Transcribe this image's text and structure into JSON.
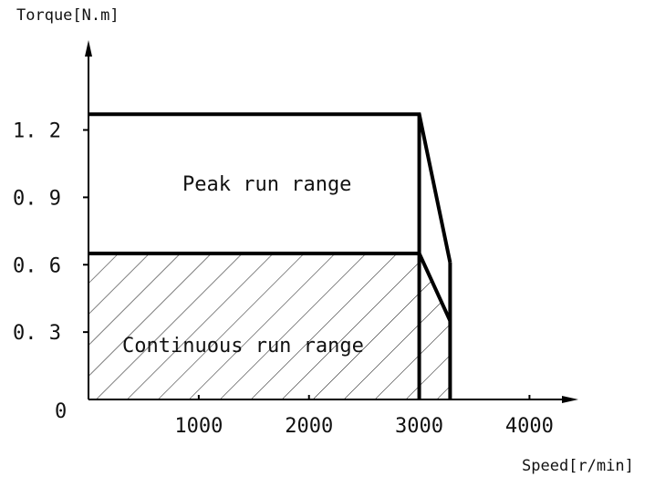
{
  "chart_data": {
    "type": "area",
    "ylabel": "Torque[N.m]",
    "xlabel": "Speed[r/min]",
    "x_ticks": [
      1000,
      2000,
      3000,
      4000
    ],
    "x_tick_labels": [
      "1000",
      "2000",
      "3000",
      "4000"
    ],
    "y_ticks": [
      0,
      0.3,
      0.6,
      0.9,
      1.2
    ],
    "y_tick_labels": [
      "0",
      "0. 3",
      "0. 6",
      "0. 9",
      "1. 2"
    ],
    "xlim": [
      0,
      4700
    ],
    "ylim": [
      0,
      1.6
    ],
    "regions": [
      {
        "name": "Peak run range",
        "hatched": false,
        "points": [
          [
            0,
            1.27
          ],
          [
            3000,
            1.27
          ],
          [
            3280,
            0.61
          ],
          [
            3280,
            0
          ]
        ]
      },
      {
        "name": "Continuous run range",
        "hatched": true,
        "points": [
          [
            0,
            0
          ],
          [
            0,
            0.65
          ],
          [
            3000,
            0.65
          ],
          [
            3280,
            0.35
          ],
          [
            3280,
            0
          ],
          [
            0,
            0
          ]
        ]
      }
    ],
    "grid": false,
    "colors": {
      "line": "#000000",
      "hatch": "#222222"
    }
  }
}
